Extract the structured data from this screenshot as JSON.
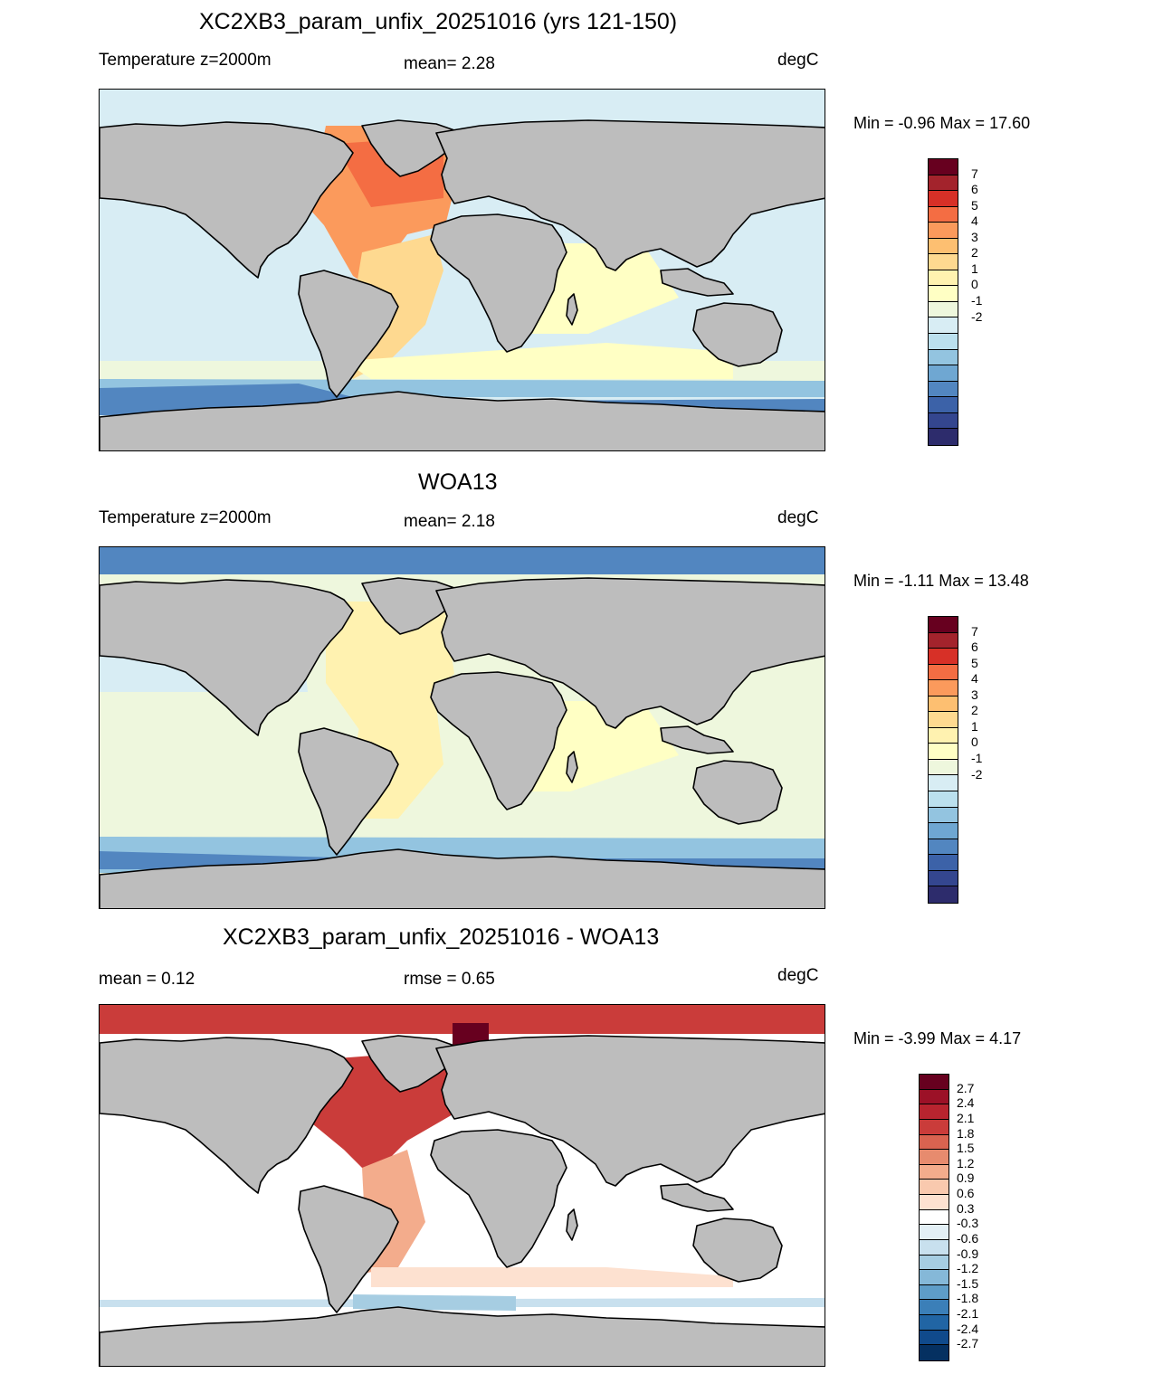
{
  "panels": [
    {
      "title": "XC2XB3_param_unfix_20251016 (yrs 121-150)",
      "left_label": "Temperature z=2000m",
      "mid_label": "mean=   2.28",
      "units": "degC",
      "minmax": "Min =  -0.96 Max =  17.60",
      "field": "model"
    },
    {
      "title": "WOA13",
      "left_label": "Temperature z=2000m",
      "mid_label": "mean=   2.18",
      "units": "degC",
      "minmax": "Min =  -1.11 Max =  13.48",
      "field": "obs"
    },
    {
      "title": "XC2XB3_param_unfix_20251016 - WOA13",
      "left_label": "mean =   0.12",
      "mid_label": "rmse =   0.65",
      "units": "degC",
      "minmax": "Min =  -3.99 Max =   4.17",
      "field": "diff"
    }
  ],
  "legends": {
    "temperature": {
      "labels": [
        "7",
        "6",
        "5",
        "4",
        "3",
        "2",
        "1",
        "0",
        "-1",
        "-2"
      ],
      "colors": [
        "#67001f",
        "#a3232c",
        "#d73027",
        "#f46d43",
        "#fb9a5c",
        "#fdbf71",
        "#fed990",
        "#fff2b0",
        "#ffffc4",
        "#eef7dd",
        "#d8edf4",
        "#bbe0ee",
        "#93c4e0",
        "#6fa7d2",
        "#5286c0",
        "#3c62a8",
        "#34468f",
        "#2d2c6c"
      ]
    },
    "difference": {
      "labels": [
        "2.7",
        "2.4",
        "2.1",
        "1.8",
        "1.5",
        "1.2",
        "0.9",
        "0.6",
        "0.3",
        "-0.3",
        "-0.6",
        "-0.9",
        "-1.2",
        "-1.5",
        "-1.8",
        "-2.1",
        "-2.4",
        "-2.7"
      ],
      "colors": [
        "#67001f",
        "#9c1127",
        "#b8242f",
        "#ca3c3a",
        "#d96350",
        "#e78b6e",
        "#f3ac8c",
        "#f9c9ae",
        "#fde1d0",
        "#ffffff",
        "#e3eff5",
        "#c8e0ee",
        "#a6cde2",
        "#85b8d8",
        "#5e9dc8",
        "#3b7fb8",
        "#2165a4",
        "#104a8c",
        "#053061"
      ]
    }
  },
  "colors": {
    "land": "#bdbdbd",
    "coast": "#000000"
  }
}
